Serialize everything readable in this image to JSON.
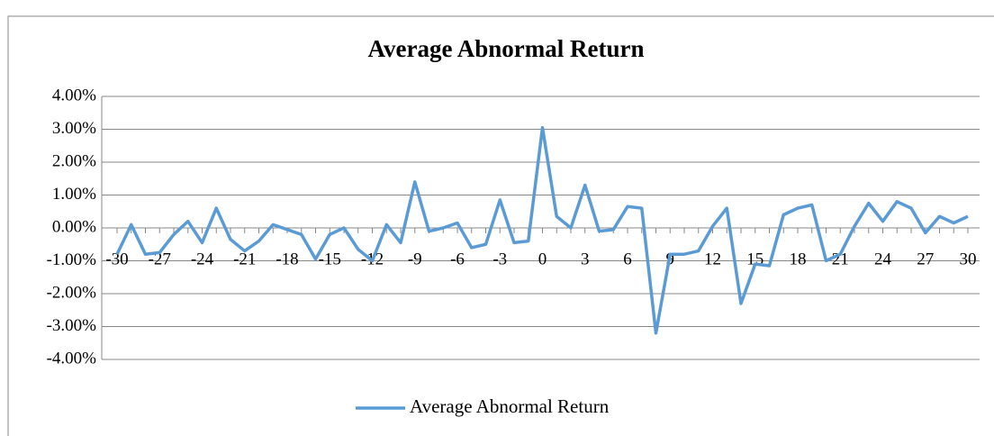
{
  "chart_data": {
    "type": "line",
    "title": "Average Abnormal Return",
    "categories": [
      "-30",
      null,
      null,
      "-27",
      null,
      null,
      "-24",
      null,
      null,
      "-21",
      null,
      null,
      "-18",
      null,
      null,
      "-15",
      null,
      null,
      "-12",
      null,
      null,
      "-9",
      null,
      null,
      "-6",
      null,
      null,
      "-3",
      null,
      null,
      "0",
      null,
      null,
      "3",
      null,
      null,
      "6",
      null,
      null,
      "9",
      null,
      null,
      "12",
      null,
      null,
      "15",
      null,
      null,
      "18",
      null,
      null,
      "21",
      null,
      null,
      "24",
      null,
      null,
      "27",
      null,
      null,
      "30"
    ],
    "series": [
      {
        "name": "Average Abnormal Return",
        "color": "#5b9bd5",
        "values": [
          -0.8,
          0.1,
          -0.8,
          -0.75,
          -0.2,
          0.2,
          -0.45,
          0.6,
          -0.35,
          -0.7,
          -0.4,
          0.1,
          -0.05,
          -0.2,
          -0.95,
          -0.2,
          0.0,
          -0.65,
          -1.0,
          0.1,
          -0.45,
          1.4,
          -0.1,
          0.0,
          0.15,
          -0.6,
          -0.5,
          0.85,
          -0.45,
          -0.4,
          3.05,
          0.35,
          0.0,
          1.3,
          -0.1,
          -0.05,
          0.65,
          0.6,
          -3.2,
          -0.8,
          -0.8,
          -0.7,
          0.05,
          0.6,
          -2.3,
          -1.1,
          -1.15,
          0.4,
          0.6,
          0.7,
          -1.0,
          -0.8,
          0.05,
          0.75,
          0.2,
          0.8,
          0.6,
          -0.15,
          0.35,
          0.15,
          0.35
        ]
      }
    ],
    "ylim": [
      -4,
      4
    ],
    "yticks": [
      {
        "value": -4,
        "label": "-4.00%"
      },
      {
        "value": -3,
        "label": "-3.00%"
      },
      {
        "value": -2,
        "label": "-2.00%"
      },
      {
        "value": -1,
        "label": "-1.00%"
      },
      {
        "value": 0,
        "label": "0.00%"
      },
      {
        "value": 1,
        "label": "1.00%"
      },
      {
        "value": 2,
        "label": "2.00%"
      },
      {
        "value": 3,
        "label": "3.00%"
      },
      {
        "value": 4,
        "label": "4.00%"
      }
    ],
    "grid": true,
    "legend": "bottom"
  }
}
